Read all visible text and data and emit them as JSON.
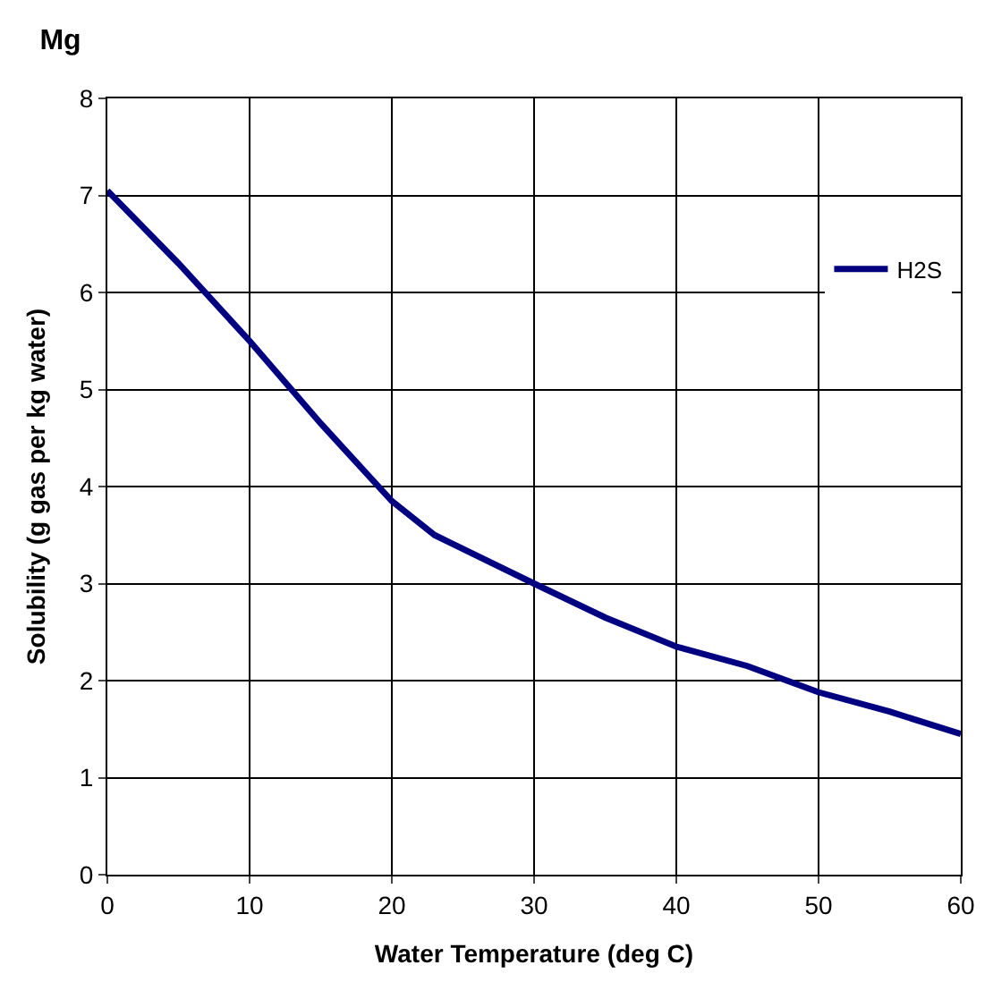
{
  "chart_data": {
    "type": "line",
    "title": "Mg",
    "xlabel": "Water Temperature (deg C)",
    "ylabel": "Solubility (g gas per kg water)",
    "x": [
      0,
      5,
      10,
      15,
      20,
      23,
      30,
      35,
      40,
      45,
      50,
      55,
      60
    ],
    "series": [
      {
        "name": "H2S",
        "color": "#000080",
        "values": [
          7.05,
          6.3,
          5.5,
          4.65,
          3.85,
          3.5,
          3.0,
          2.65,
          2.35,
          2.15,
          1.88,
          1.68,
          1.45
        ]
      }
    ],
    "xlim": [
      0,
      60
    ],
    "xticks": [
      0,
      10,
      20,
      30,
      40,
      50,
      60
    ],
    "ylim": [
      0,
      8
    ],
    "yticks": [
      0,
      1,
      2,
      3,
      4,
      5,
      6,
      7,
      8
    ],
    "grid": true,
    "legend": "top right",
    "marker": "none",
    "line_style": "solid"
  }
}
